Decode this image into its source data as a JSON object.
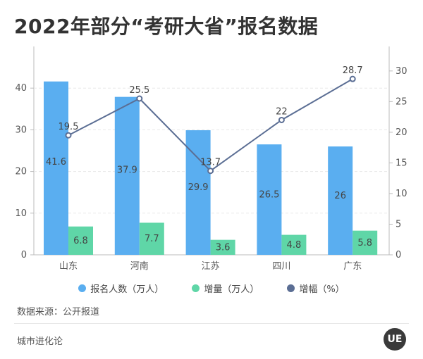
{
  "header": {
    "title": "2022年部分“考研大省”报名数据"
  },
  "footer": {
    "source": "数据来源：公开报道",
    "brand": "城市进化论",
    "logo_text": "UE"
  },
  "colors": {
    "applicants": "#5aaef0",
    "increase": "#5fd6a7",
    "growth": "#5b6e94"
  },
  "chart_data": {
    "type": "bar",
    "categories": [
      "山东",
      "河南",
      "江苏",
      "四川",
      "广东"
    ],
    "series": [
      {
        "name": "报名人数（万人）",
        "type": "bar",
        "axis": "left",
        "values": [
          41.6,
          37.9,
          29.9,
          26.5,
          26
        ]
      },
      {
        "name": "增量（万人）",
        "type": "bar",
        "axis": "left",
        "values": [
          6.8,
          7.7,
          3.6,
          4.8,
          5.8
        ]
      },
      {
        "name": "增幅（%）",
        "type": "line",
        "axis": "right",
        "values": [
          19.5,
          25.5,
          13.7,
          22,
          28.7
        ]
      }
    ],
    "y_left": {
      "range": [
        0,
        50
      ],
      "ticks": [
        0,
        10,
        20,
        30,
        40
      ]
    },
    "y_right": {
      "range": [
        0,
        34
      ],
      "ticks": [
        0,
        5,
        10,
        15,
        20,
        25,
        30
      ]
    },
    "grid": true,
    "legend": "bottom"
  }
}
